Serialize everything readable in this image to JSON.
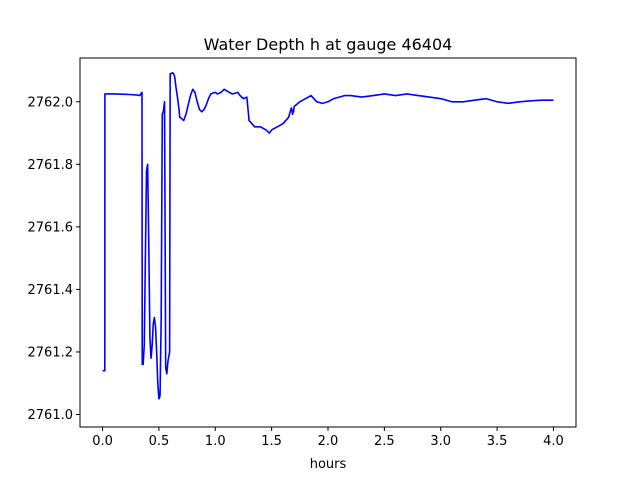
{
  "chart_data": {
    "type": "line",
    "title": "Water Depth h at gauge 46404",
    "xlabel": "hours",
    "ylabel": "",
    "xlim": [
      -0.2,
      4.2
    ],
    "ylim": [
      2760.96,
      2762.14
    ],
    "xticks": [
      0.0,
      0.5,
      1.0,
      1.5,
      2.0,
      2.5,
      3.0,
      3.5,
      4.0
    ],
    "xtick_labels": [
      "0.0",
      "0.5",
      "1.0",
      "1.5",
      "2.0",
      "2.5",
      "3.0",
      "3.5",
      "4.0"
    ],
    "yticks": [
      2761.0,
      2761.2,
      2761.4,
      2761.6,
      2761.8,
      2762.0
    ],
    "ytick_labels": [
      "2761.0",
      "2761.2",
      "2761.4",
      "2761.6",
      "2761.8",
      "2762.0"
    ],
    "grid": false,
    "series": [
      {
        "color": "#0000ff",
        "x": [
          0.0,
          0.02,
          0.021,
          0.1,
          0.2,
          0.3,
          0.33,
          0.345,
          0.35,
          0.352,
          0.36,
          0.37,
          0.38,
          0.39,
          0.4,
          0.41,
          0.42,
          0.43,
          0.44,
          0.45,
          0.46,
          0.47,
          0.48,
          0.49,
          0.5,
          0.51,
          0.52,
          0.53,
          0.54,
          0.55,
          0.56,
          0.57,
          0.575,
          0.58,
          0.585,
          0.59,
          0.595,
          0.6,
          0.61,
          0.62,
          0.63,
          0.64,
          0.65,
          0.67,
          0.68,
          0.685,
          0.69,
          0.72,
          0.74,
          0.76,
          0.78,
          0.8,
          0.82,
          0.84,
          0.86,
          0.88,
          0.9,
          0.92,
          0.94,
          0.96,
          0.98,
          1.0,
          1.02,
          1.05,
          1.08,
          1.1,
          1.15,
          1.2,
          1.22,
          1.25,
          1.28,
          1.3,
          1.35,
          1.4,
          1.45,
          1.48,
          1.5,
          1.55,
          1.6,
          1.65,
          1.67,
          1.675,
          1.68,
          1.685,
          1.69,
          1.695,
          1.7,
          1.75,
          1.8,
          1.85,
          1.9,
          1.95,
          2.0,
          2.05,
          2.1,
          2.15,
          2.2,
          2.3,
          2.4,
          2.5,
          2.6,
          2.7,
          2.8,
          2.9,
          3.0,
          3.1,
          3.2,
          3.3,
          3.4,
          3.5,
          3.6,
          3.7,
          3.8,
          3.9,
          4.0
        ],
        "y": [
          2761.14,
          2761.14,
          2762.025,
          2762.025,
          2762.024,
          2762.022,
          2762.02,
          2762.028,
          2762.03,
          2761.16,
          2761.16,
          2761.22,
          2761.5,
          2761.78,
          2761.8,
          2761.55,
          2761.25,
          2761.18,
          2761.22,
          2761.29,
          2761.31,
          2761.28,
          2761.2,
          2761.1,
          2761.05,
          2761.06,
          2761.3,
          2761.96,
          2761.97,
          2762.0,
          2761.15,
          2761.13,
          2761.15,
          2761.17,
          2761.18,
          2761.19,
          2761.2,
          2762.09,
          2762.09,
          2762.093,
          2762.09,
          2762.08,
          2762.05,
          2762.0,
          2761.97,
          2761.95,
          2761.95,
          2761.94,
          2761.96,
          2761.99,
          2762.02,
          2762.04,
          2762.03,
          2762.0,
          2761.975,
          2761.968,
          2761.975,
          2761.99,
          2762.01,
          2762.025,
          2762.028,
          2762.03,
          2762.025,
          2762.03,
          2762.04,
          2762.035,
          2762.025,
          2762.03,
          2762.02,
          2762.01,
          2762.015,
          2761.94,
          2761.92,
          2761.92,
          2761.91,
          2761.9,
          2761.91,
          2761.92,
          2761.93,
          2761.95,
          2761.975,
          2761.98,
          2761.975,
          2761.96,
          2761.965,
          2761.97,
          2761.985,
          2762.0,
          2762.01,
          2762.02,
          2762.0,
          2761.995,
          2762.0,
          2762.01,
          2762.015,
          2762.02,
          2762.02,
          2762.015,
          2762.02,
          2762.025,
          2762.02,
          2762.025,
          2762.02,
          2762.015,
          2762.01,
          2762.0,
          2762.0,
          2762.005,
          2762.01,
          2762.0,
          2761.995,
          2762.0,
          2762.003,
          2762.005,
          2762.005
        ]
      }
    ]
  }
}
